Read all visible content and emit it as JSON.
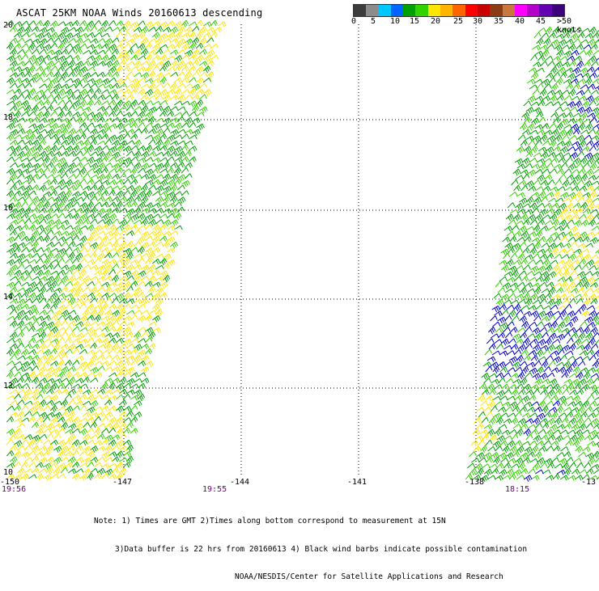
{
  "title": "ASCAT 25KM NOAA Winds 20160613 descending",
  "scale": {
    "colors": [
      "#3c3c3c",
      "#8c8c8c",
      "#00c8ff",
      "#0064ff",
      "#00a000",
      "#32d200",
      "#ffe600",
      "#ffb400",
      "#ff6400",
      "#ff0000",
      "#c80000",
      "#8c3c14",
      "#c8783c",
      "#ff00ff",
      "#b400c8",
      "#6400b4",
      "#3c0078"
    ],
    "labels": [
      "0",
      "5",
      "10",
      "15",
      "20",
      "25",
      "30",
      "35",
      "40",
      "45",
      ">50 knots"
    ]
  },
  "map": {
    "lat_labels": [
      "20",
      "18",
      "16",
      "14",
      "12",
      "10"
    ],
    "lon_labels": [
      "-150",
      "-147",
      "-144",
      "-141",
      "-138",
      "-13"
    ],
    "time_labels": [
      "19:56",
      "19:55",
      "18:15"
    ],
    "barb_colors": {
      "dark_green": "#00a000",
      "green": "#32d200",
      "yellow": "#ffe600",
      "blue": "#0000d0"
    }
  },
  "notes": {
    "line1": "Note: 1) Times are GMT 2)Times along bottom correspond to measurement at 15N",
    "line2": "3)Data buffer is 22 hrs from 20160613 4) Black wind barbs indicate possible contamination",
    "line3": "NOAA/NESDIS/Center for Satellite Applications and Research"
  }
}
